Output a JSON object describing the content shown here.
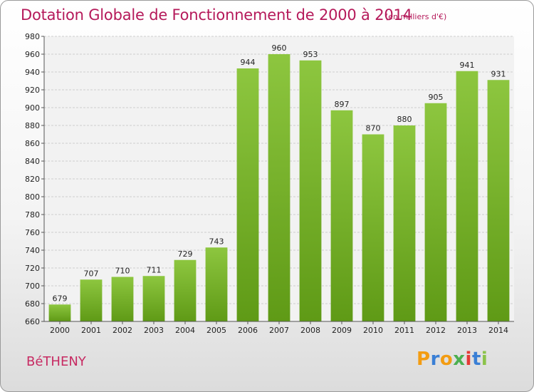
{
  "chart_data": {
    "type": "bar",
    "title": "Dotation Globale de Fonctionnement de 2000 à 2014",
    "subtitle": "(en milliers d'€)",
    "categories": [
      "2000",
      "2001",
      "2002",
      "2003",
      "2004",
      "2005",
      "2006",
      "2007",
      "2008",
      "2009",
      "2010",
      "2011",
      "2012",
      "2013",
      "2014"
    ],
    "values": [
      679,
      707,
      710,
      711,
      729,
      743,
      944,
      960,
      953,
      897,
      870,
      880,
      905,
      941,
      931
    ],
    "ylim": [
      660,
      980
    ],
    "ytick_step": 20,
    "xlabel": "",
    "ylabel": "",
    "grid": true,
    "bar_color": "#8dc63f",
    "bar_color_dark": "#5f9a16"
  },
  "commune": "BéTHENY",
  "brand": {
    "letters": [
      "P",
      "r",
      "o",
      "x",
      "i",
      "t",
      "i"
    ],
    "colors": [
      "#f39c12",
      "#3a7fd5",
      "#f39c12",
      "#4caf50",
      "#e53935",
      "#3a7fd5",
      "#8bc34a"
    ]
  }
}
